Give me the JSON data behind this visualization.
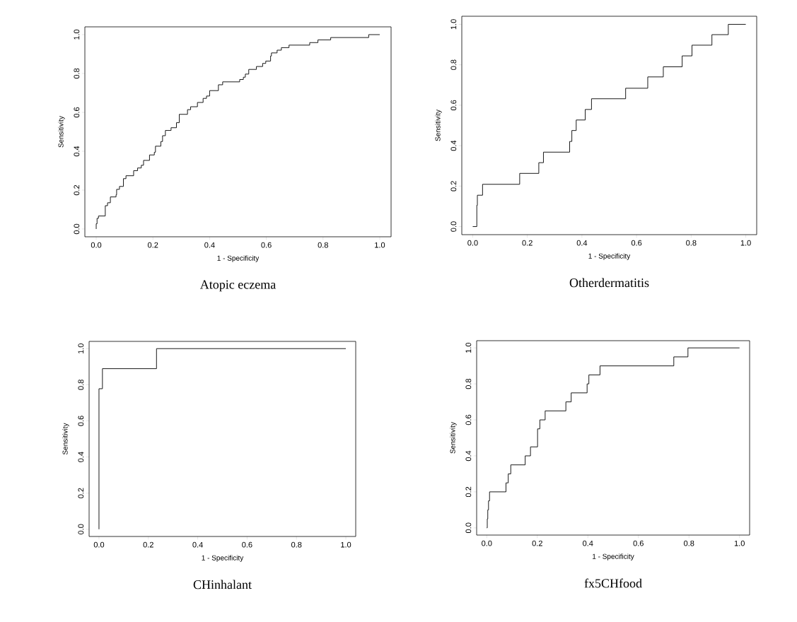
{
  "chart_data": [
    {
      "type": "step",
      "title": "Atopic eczema",
      "xlabel": "1 - Specificity",
      "ylabel": "Sensitivity",
      "color": "#000000",
      "x": [
        0,
        0,
        0.003,
        0.008,
        0.032,
        0.04,
        0.05,
        0.07,
        0.072,
        0.082,
        0.096,
        0.105,
        0.132,
        0.146,
        0.159,
        0.167,
        0.188,
        0.205,
        0.209,
        0.228,
        0.234,
        0.244,
        0.264,
        0.283,
        0.293,
        0.322,
        0.333,
        0.357,
        0.377,
        0.389,
        0.4,
        0.431,
        0.446,
        0.506,
        0.519,
        0.526,
        0.538,
        0.565,
        0.587,
        0.598,
        0.615,
        0.618,
        0.638,
        0.653,
        0.68,
        0.753,
        0.782,
        0.827,
        0.961,
        1.0
      ],
      "values": [
        0,
        0.027,
        0.055,
        0.067,
        0.12,
        0.135,
        0.165,
        0.176,
        0.204,
        0.219,
        0.259,
        0.274,
        0.3,
        0.314,
        0.328,
        0.353,
        0.381,
        0.395,
        0.426,
        0.45,
        0.48,
        0.507,
        0.521,
        0.547,
        0.59,
        0.614,
        0.629,
        0.651,
        0.672,
        0.684,
        0.712,
        0.742,
        0.757,
        0.769,
        0.781,
        0.797,
        0.821,
        0.836,
        0.852,
        0.864,
        0.89,
        0.906,
        0.92,
        0.933,
        0.946,
        0.959,
        0.973,
        0.985,
        1.0,
        1.0
      ],
      "xlim": [
        -0.04,
        1.04
      ],
      "ylim": [
        -0.04,
        1.04
      ],
      "xticks": [
        {
          "value": 0,
          "label": "0.0"
        },
        {
          "value": 0.2,
          "label": "0.2"
        },
        {
          "value": 0.4,
          "label": "0.4"
        },
        {
          "value": 0.6,
          "label": "0.6"
        },
        {
          "value": 0.8,
          "label": "0.8"
        },
        {
          "value": 1,
          "label": "1.0"
        }
      ],
      "yticks": [
        {
          "value": 0,
          "label": "0.0"
        },
        {
          "value": 0.2,
          "label": "0.2"
        },
        {
          "value": 0.4,
          "label": "0.4"
        },
        {
          "value": 0.6,
          "label": "0.6"
        },
        {
          "value": 0.8,
          "label": "0.8"
        },
        {
          "value": 1,
          "label": "1.0"
        }
      ]
    },
    {
      "type": "step",
      "title": "Otherdermatitis",
      "xlabel": "1 - Specificity",
      "ylabel": "Sensitivity",
      "color": "#000000",
      "x": [
        0,
        0.015,
        0.017,
        0.036,
        0.172,
        0.242,
        0.259,
        0.355,
        0.363,
        0.379,
        0.412,
        0.435,
        0.56,
        0.641,
        0.698,
        0.767,
        0.803,
        0.876,
        0.936,
        1.0
      ],
      "values": [
        0,
        0.105,
        0.155,
        0.209,
        0.263,
        0.316,
        0.368,
        0.421,
        0.475,
        0.527,
        0.579,
        0.632,
        0.684,
        0.74,
        0.79,
        0.844,
        0.897,
        0.949,
        1.0,
        1.0
      ],
      "xlim": [
        -0.04,
        1.04
      ],
      "ylim": [
        -0.04,
        1.04
      ],
      "xticks": [
        {
          "value": 0,
          "label": "0.0"
        },
        {
          "value": 0.2,
          "label": "0.2"
        },
        {
          "value": 0.4,
          "label": "0.4"
        },
        {
          "value": 0.6,
          "label": "0.6"
        },
        {
          "value": 0.8,
          "label": "0.8"
        },
        {
          "value": 1,
          "label": "1.0"
        }
      ],
      "yticks": [
        {
          "value": 0,
          "label": "0.0"
        },
        {
          "value": 0.2,
          "label": "0.2"
        },
        {
          "value": 0.4,
          "label": "0.4"
        },
        {
          "value": 0.6,
          "label": "0.6"
        },
        {
          "value": 0.8,
          "label": "0.8"
        },
        {
          "value": 1,
          "label": "1.0"
        }
      ]
    },
    {
      "type": "step",
      "title": "CHinhalant",
      "xlabel": "1 - Specificity",
      "ylabel": "Sensitivity",
      "color": "#000000",
      "x": [
        0,
        0,
        0.014,
        0.233,
        1.0
      ],
      "values": [
        0,
        0.778,
        0.889,
        1.0,
        1.0
      ],
      "xlim": [
        -0.04,
        1.04
      ],
      "ylim": [
        -0.04,
        1.04
      ],
      "xticks": [
        {
          "value": 0,
          "label": "0.0"
        },
        {
          "value": 0.2,
          "label": "0.2"
        },
        {
          "value": 0.4,
          "label": "0.4"
        },
        {
          "value": 0.6,
          "label": "0.6"
        },
        {
          "value": 0.8,
          "label": "0.8"
        },
        {
          "value": 1,
          "label": "1.0"
        }
      ],
      "yticks": [
        {
          "value": 0,
          "label": "0.0"
        },
        {
          "value": 0.2,
          "label": "0.2"
        },
        {
          "value": 0.4,
          "label": "0.4"
        },
        {
          "value": 0.6,
          "label": "0.6"
        },
        {
          "value": 0.8,
          "label": "0.8"
        },
        {
          "value": 1,
          "label": "1.0"
        }
      ]
    },
    {
      "type": "step",
      "title": "fx5CHfood",
      "xlabel": "1 - Specificity",
      "ylabel": "Sensitivity",
      "color": "#000000",
      "x": [
        0,
        0.002,
        0.004,
        0.007,
        0.011,
        0.076,
        0.085,
        0.095,
        0.152,
        0.173,
        0.201,
        0.21,
        0.231,
        0.313,
        0.334,
        0.397,
        0.404,
        0.448,
        0.74,
        0.796,
        1.0
      ],
      "values": [
        0,
        0.05,
        0.1,
        0.15,
        0.2,
        0.25,
        0.3,
        0.35,
        0.4,
        0.45,
        0.55,
        0.6,
        0.65,
        0.7,
        0.75,
        0.8,
        0.85,
        0.9,
        0.95,
        1.0,
        1.0
      ],
      "xlim": [
        -0.04,
        1.04
      ],
      "ylim": [
        -0.04,
        1.04
      ],
      "xticks": [
        {
          "value": 0,
          "label": "0.0"
        },
        {
          "value": 0.2,
          "label": "0.2"
        },
        {
          "value": 0.4,
          "label": "0.4"
        },
        {
          "value": 0.6,
          "label": "0.6"
        },
        {
          "value": 0.8,
          "label": "0.8"
        },
        {
          "value": 1,
          "label": "1.0"
        }
      ],
      "yticks": [
        {
          "value": 0,
          "label": "0.0"
        },
        {
          "value": 0.2,
          "label": "0.2"
        },
        {
          "value": 0.4,
          "label": "0.4"
        },
        {
          "value": 0.6,
          "label": "0.6"
        },
        {
          "value": 0.8,
          "label": "0.8"
        },
        {
          "value": 1,
          "label": "1.0"
        }
      ]
    }
  ]
}
